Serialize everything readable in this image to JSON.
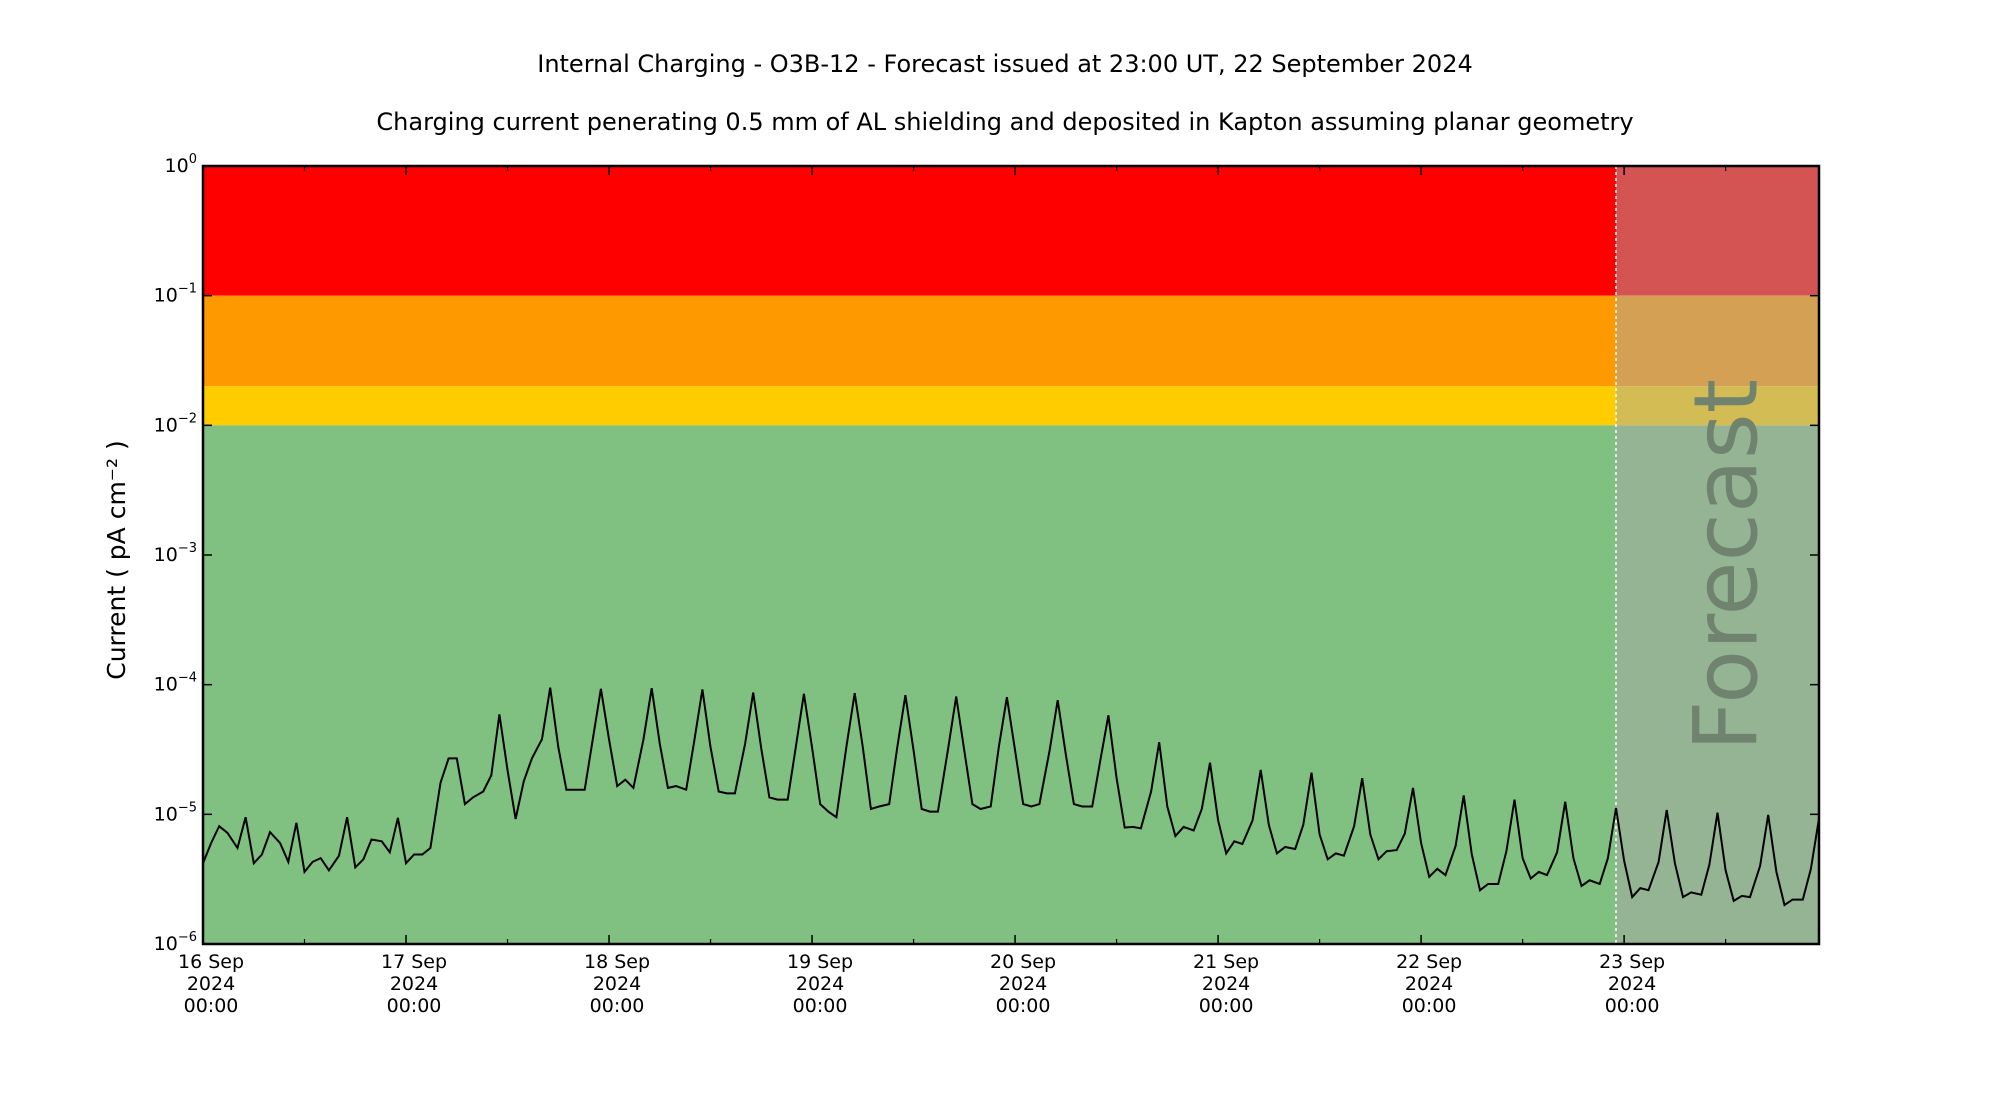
{
  "chart_data": {
    "type": "line",
    "title": "Internal Charging - O3B-12 - Forecast issued at 23:00 UT, 22 September 2024",
    "subtitle": "Charging current penerating 0.5 mm of AL shielding and deposited in Kapton assuming planar geometry",
    "ylabel": "Current ( pA cm⁻² )",
    "xlabel": "",
    "yscale": "log",
    "ylim": [
      1e-06,
      1
    ],
    "xlim_days": [
      0,
      7.96
    ],
    "forecast_start_day": 6.96,
    "forecast_label": "Forecast",
    "grid": false,
    "colors": {
      "red": "#ff0000",
      "orange": "#ff9900",
      "yellow": "#ffcc00",
      "green": "#80c080",
      "red_forecast": "#d45454",
      "orange_forecast": "#d4a054",
      "yellow_forecast": "#d4bc54",
      "green_forecast": "#94b494",
      "line": "#000000",
      "forecast_text": "#6f836f"
    },
    "bands": [
      {
        "name": "red",
        "from": 0.1,
        "to": 1
      },
      {
        "name": "orange",
        "from": 0.02,
        "to": 0.1
      },
      {
        "name": "yellow",
        "from": 0.01,
        "to": 0.02
      },
      {
        "name": "green",
        "from": 1e-06,
        "to": 0.01
      }
    ],
    "y_ticks": [
      {
        "exp": "-6",
        "value": 1e-06
      },
      {
        "exp": "-5",
        "value": 1e-05
      },
      {
        "exp": "-4",
        "value": 0.0001
      },
      {
        "exp": "-3",
        "value": 0.001
      },
      {
        "exp": "-2",
        "value": 0.01
      },
      {
        "exp": "-1",
        "value": 0.1
      },
      {
        "exp": "0",
        "value": 1
      }
    ],
    "x_ticks": [
      {
        "day": 0,
        "line1": "16 Sep",
        "line2": "2024",
        "line3": "00:00"
      },
      {
        "day": 1,
        "line1": "17 Sep",
        "line2": "2024",
        "line3": "00:00"
      },
      {
        "day": 2,
        "line1": "18 Sep",
        "line2": "2024",
        "line3": "00:00"
      },
      {
        "day": 3,
        "line1": "19 Sep",
        "line2": "2024",
        "line3": "00:00"
      },
      {
        "day": 4,
        "line1": "20 Sep",
        "line2": "2024",
        "line3": "00:00"
      },
      {
        "day": 5,
        "line1": "21 Sep",
        "line2": "2024",
        "line3": "00:00"
      },
      {
        "day": 6,
        "line1": "22 Sep",
        "line2": "2024",
        "line3": "00:00"
      },
      {
        "day": 7,
        "line1": "23 Sep",
        "line2": "2024",
        "line3": "00:00"
      }
    ],
    "x_minor_ticks": [
      0.5,
      1.5,
      2.5,
      3.5,
      4.5,
      5.5,
      6.5,
      7.5
    ],
    "series": [
      {
        "values": [
          [
            0.0,
            4.2e-06
          ],
          [
            0.04,
            6e-06
          ],
          [
            0.08,
            8.1e-06
          ],
          [
            0.12,
            7.2e-06
          ],
          [
            0.17,
            5.5e-06
          ],
          [
            0.21,
            9.5e-06
          ],
          [
            0.25,
            4.2e-06
          ],
          [
            0.29,
            4.9e-06
          ],
          [
            0.33,
            7.3e-06
          ],
          [
            0.38,
            6e-06
          ],
          [
            0.42,
            4.3e-06
          ],
          [
            0.46,
            8.6e-06
          ],
          [
            0.5,
            3.6e-06
          ],
          [
            0.54,
            4.3e-06
          ],
          [
            0.58,
            4.6e-06
          ],
          [
            0.62,
            3.7e-06
          ],
          [
            0.67,
            4.8e-06
          ],
          [
            0.71,
            9.5e-06
          ],
          [
            0.75,
            3.9e-06
          ],
          [
            0.79,
            4.5e-06
          ],
          [
            0.83,
            6.4e-06
          ],
          [
            0.88,
            6.2e-06
          ],
          [
            0.92,
            5.1e-06
          ],
          [
            0.96,
            9.4e-06
          ],
          [
            1.0,
            4.2e-06
          ],
          [
            1.04,
            4.9e-06
          ],
          [
            1.08,
            4.9e-06
          ],
          [
            1.12,
            5.5e-06
          ],
          [
            1.17,
            1.75e-05
          ],
          [
            1.21,
            2.7e-05
          ],
          [
            1.25,
            2.7e-05
          ],
          [
            1.29,
            1.2e-05
          ],
          [
            1.33,
            1.35e-05
          ],
          [
            1.38,
            1.5e-05
          ],
          [
            1.42,
            2e-05
          ],
          [
            1.46,
            5.9e-05
          ],
          [
            1.5,
            2.2e-05
          ],
          [
            1.54,
            9.2e-06
          ],
          [
            1.58,
            1.8e-05
          ],
          [
            1.62,
            2.7e-05
          ],
          [
            1.67,
            3.8e-05
          ],
          [
            1.71,
            9.5e-05
          ],
          [
            1.75,
            3.3e-05
          ],
          [
            1.79,
            1.55e-05
          ],
          [
            1.83,
            1.55e-05
          ],
          [
            1.88,
            1.55e-05
          ],
          [
            1.92,
            3.8e-05
          ],
          [
            1.96,
            9.3e-05
          ],
          [
            2.0,
            3.8e-05
          ],
          [
            2.04,
            1.65e-05
          ],
          [
            2.08,
            1.85e-05
          ],
          [
            2.12,
            1.6e-05
          ],
          [
            2.17,
            3.8e-05
          ],
          [
            2.21,
            9.4e-05
          ],
          [
            2.25,
            3.5e-05
          ],
          [
            2.29,
            1.6e-05
          ],
          [
            2.33,
            1.65e-05
          ],
          [
            2.38,
            1.55e-05
          ],
          [
            2.42,
            3.7e-05
          ],
          [
            2.46,
            9.2e-05
          ],
          [
            2.5,
            3.3e-05
          ],
          [
            2.54,
            1.5e-05
          ],
          [
            2.58,
            1.45e-05
          ],
          [
            2.62,
            1.45e-05
          ],
          [
            2.67,
            3.5e-05
          ],
          [
            2.71,
            8.7e-05
          ],
          [
            2.75,
            3.2e-05
          ],
          [
            2.79,
            1.35e-05
          ],
          [
            2.83,
            1.3e-05
          ],
          [
            2.88,
            1.3e-05
          ],
          [
            2.92,
            3.3e-05
          ],
          [
            2.96,
            8.5e-05
          ],
          [
            3.0,
            3.3e-05
          ],
          [
            3.04,
            1.2e-05
          ],
          [
            3.08,
            1.05e-05
          ],
          [
            3.12,
            9.5e-06
          ],
          [
            3.17,
            3.4e-05
          ],
          [
            3.21,
            8.6e-05
          ],
          [
            3.25,
            3.3e-05
          ],
          [
            3.29,
            1.1e-05
          ],
          [
            3.33,
            1.15e-05
          ],
          [
            3.38,
            1.2e-05
          ],
          [
            3.42,
            3.3e-05
          ],
          [
            3.46,
            8.3e-05
          ],
          [
            3.5,
            3.1e-05
          ],
          [
            3.54,
            1.1e-05
          ],
          [
            3.58,
            1.05e-05
          ],
          [
            3.62,
            1.05e-05
          ],
          [
            3.67,
            3.2e-05
          ],
          [
            3.71,
            8.1e-05
          ],
          [
            3.75,
            3.1e-05
          ],
          [
            3.79,
            1.2e-05
          ],
          [
            3.83,
            1.1e-05
          ],
          [
            3.88,
            1.15e-05
          ],
          [
            3.92,
            3.3e-05
          ],
          [
            3.96,
            8e-05
          ],
          [
            4.0,
            3.1e-05
          ],
          [
            4.04,
            1.2e-05
          ],
          [
            4.08,
            1.15e-05
          ],
          [
            4.12,
            1.2e-05
          ],
          [
            4.17,
            3.1e-05
          ],
          [
            4.21,
            7.6e-05
          ],
          [
            4.25,
            2.9e-05
          ],
          [
            4.29,
            1.2e-05
          ],
          [
            4.33,
            1.15e-05
          ],
          [
            4.38,
            1.15e-05
          ],
          [
            4.42,
            2.6e-05
          ],
          [
            4.46,
            5.8e-05
          ],
          [
            4.5,
            1.9e-05
          ],
          [
            4.54,
            7.9e-06
          ],
          [
            4.58,
            8e-06
          ],
          [
            4.62,
            7.8e-06
          ],
          [
            4.67,
            1.5e-05
          ],
          [
            4.71,
            3.6e-05
          ],
          [
            4.75,
            1.15e-05
          ],
          [
            4.79,
            6.8e-06
          ],
          [
            4.83,
            8e-06
          ],
          [
            4.88,
            7.5e-06
          ],
          [
            4.92,
            1.1e-05
          ],
          [
            4.96,
            2.5e-05
          ],
          [
            5.0,
            9e-06
          ],
          [
            5.04,
            5e-06
          ],
          [
            5.08,
            6.2e-06
          ],
          [
            5.12,
            5.9e-06
          ],
          [
            5.17,
            9e-06
          ],
          [
            5.21,
            2.2e-05
          ],
          [
            5.25,
            8.3e-06
          ],
          [
            5.29,
            5e-06
          ],
          [
            5.33,
            5.6e-06
          ],
          [
            5.38,
            5.4e-06
          ],
          [
            5.42,
            8.3e-06
          ],
          [
            5.46,
            2.1e-05
          ],
          [
            5.5,
            7e-06
          ],
          [
            5.54,
            4.5e-06
          ],
          [
            5.58,
            5e-06
          ],
          [
            5.62,
            4.8e-06
          ],
          [
            5.67,
            8.1e-06
          ],
          [
            5.71,
            1.9e-05
          ],
          [
            5.75,
            7e-06
          ],
          [
            5.79,
            4.5e-06
          ],
          [
            5.83,
            5.2e-06
          ],
          [
            5.88,
            5.3e-06
          ],
          [
            5.92,
            7.1e-06
          ],
          [
            5.96,
            1.6e-05
          ],
          [
            6.0,
            6e-06
          ],
          [
            6.04,
            3.3e-06
          ],
          [
            6.08,
            3.8e-06
          ],
          [
            6.12,
            3.4e-06
          ],
          [
            6.17,
            5.7e-06
          ],
          [
            6.21,
            1.4e-05
          ],
          [
            6.25,
            4.9e-06
          ],
          [
            6.29,
            2.6e-06
          ],
          [
            6.33,
            2.9e-06
          ],
          [
            6.38,
            2.9e-06
          ],
          [
            6.42,
            5.2e-06
          ],
          [
            6.46,
            1.3e-05
          ],
          [
            6.5,
            4.6e-06
          ],
          [
            6.54,
            3.2e-06
          ],
          [
            6.58,
            3.6e-06
          ],
          [
            6.62,
            3.4e-06
          ],
          [
            6.67,
            5.1e-06
          ],
          [
            6.71,
            1.25e-05
          ],
          [
            6.75,
            4.6e-06
          ],
          [
            6.79,
            2.8e-06
          ],
          [
            6.83,
            3.1e-06
          ],
          [
            6.88,
            2.9e-06
          ],
          [
            6.92,
            4.6e-06
          ],
          [
            6.96,
            1.12e-05
          ],
          [
            7.0,
            4.4e-06
          ],
          [
            7.04,
            2.3e-06
          ],
          [
            7.08,
            2.7e-06
          ],
          [
            7.12,
            2.6e-06
          ],
          [
            7.17,
            4.3e-06
          ],
          [
            7.21,
            1.08e-05
          ],
          [
            7.25,
            4.2e-06
          ],
          [
            7.29,
            2.3e-06
          ],
          [
            7.33,
            2.5e-06
          ],
          [
            7.38,
            2.4e-06
          ],
          [
            7.42,
            4.1e-06
          ],
          [
            7.46,
            1.03e-05
          ],
          [
            7.5,
            3.7e-06
          ],
          [
            7.54,
            2.15e-06
          ],
          [
            7.58,
            2.35e-06
          ],
          [
            7.62,
            2.3e-06
          ],
          [
            7.67,
            4e-06
          ],
          [
            7.71,
            9.9e-06
          ],
          [
            7.75,
            3.6e-06
          ],
          [
            7.79,
            2e-06
          ],
          [
            7.83,
            2.2e-06
          ],
          [
            7.88,
            2.2e-06
          ],
          [
            7.92,
            3.8e-06
          ],
          [
            7.96,
            9.3e-06
          ]
        ]
      }
    ]
  }
}
